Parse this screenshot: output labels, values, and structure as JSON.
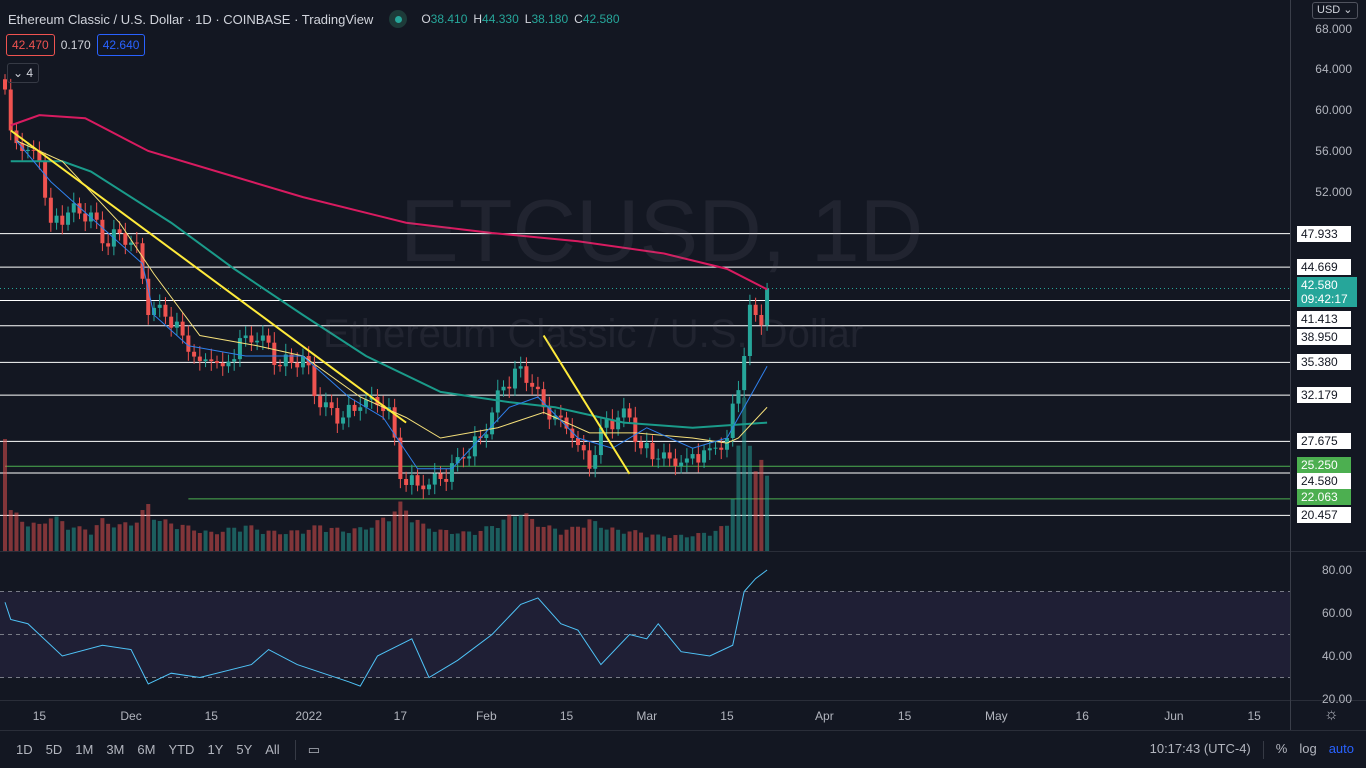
{
  "header": {
    "title": "Ethereum Classic / U.S. Dollar · 1D · COINBASE · TradingView",
    "o_label": "O",
    "o": "38.410",
    "h_label": "H",
    "h": "44.330",
    "l_label": "L",
    "l": "38.180",
    "c_label": "C",
    "c": "42.580",
    "bid": "42.470",
    "spread": "0.170",
    "ask": "42.640",
    "collapse_count": "4",
    "currency": "USD"
  },
  "watermark": {
    "symbol": "ETCUSD, 1D",
    "name": "Ethereum Classic / U.S. Dollar"
  },
  "colors": {
    "up": "#26a69a",
    "down": "#ef5350",
    "ma200": "#d81b60",
    "ma100": "#1a9b8a",
    "ma20": "#f5e07a",
    "ma10": "#2f80ed",
    "trend": "#ffeb3b",
    "rsi": "#4fc3f7"
  },
  "current_price": {
    "price": "42.580",
    "countdown": "09:42:17"
  },
  "chart_data": {
    "type": "line",
    "title": "ETCUSD 1D",
    "xlabel": "",
    "ylabel": "USD",
    "ylim": [
      16.5,
      69
    ],
    "x_ticks": [
      {
        "day": 6,
        "label": "15"
      },
      {
        "day": 22,
        "label": "Dec"
      },
      {
        "day": 36,
        "label": "15"
      },
      {
        "day": 53,
        "label": "2022"
      },
      {
        "day": 69,
        "label": "17"
      },
      {
        "day": 84,
        "label": "Feb"
      },
      {
        "day": 98,
        "label": "15"
      },
      {
        "day": 112,
        "label": "Mar"
      },
      {
        "day": 126,
        "label": "15"
      },
      {
        "day": 143,
        "label": "Apr"
      },
      {
        "day": 157,
        "label": "15"
      },
      {
        "day": 173,
        "label": "May"
      },
      {
        "day": 188,
        "label": "16"
      },
      {
        "day": 204,
        "label": "Jun"
      },
      {
        "day": 218,
        "label": "15"
      }
    ],
    "y_ticks": [
      "68.000",
      "64.000",
      "60.000",
      "56.000",
      "52.000"
    ],
    "close": {
      "day": [
        0,
        1,
        3,
        6,
        8,
        11,
        15,
        17,
        20,
        23,
        25,
        27,
        31,
        34,
        36,
        38,
        42,
        45,
        48,
        52,
        55,
        59,
        62,
        64,
        67,
        69,
        73,
        76,
        80,
        83,
        87,
        90,
        92,
        94,
        97,
        99,
        102,
        104,
        107,
        109,
        111,
        114,
        116,
        119,
        123,
        126,
        129,
        130,
        131,
        132,
        133
      ],
      "value": [
        62,
        58,
        56,
        55,
        49,
        50,
        50,
        47,
        48,
        47,
        40,
        41,
        38,
        35.5,
        35.5,
        35,
        38,
        38,
        35,
        36,
        31,
        30,
        31,
        32,
        31,
        24,
        23,
        24,
        26,
        28,
        33,
        35,
        33,
        31,
        30,
        28,
        25,
        29,
        30,
        30,
        27,
        26,
        26,
        26,
        27,
        28,
        36,
        41,
        40,
        39,
        42.58
      ],
      "volume": [
        140,
        40,
        30,
        25,
        35,
        25,
        20,
        30,
        25,
        30,
        45,
        30,
        25,
        20,
        18,
        20,
        25,
        20,
        18,
        20,
        25,
        20,
        22,
        25,
        35,
        45,
        25,
        20,
        18,
        20,
        30,
        40,
        30,
        25,
        20,
        22,
        30,
        25,
        20,
        20,
        18,
        15,
        15,
        15,
        18,
        25,
        140,
        110,
        90,
        85,
        70
      ]
    },
    "ma200": {
      "day": [
        1,
        6,
        14,
        25,
        40,
        52,
        70,
        85,
        100,
        115,
        126,
        133
      ],
      "value": [
        58.5,
        59.5,
        59.2,
        56,
        53.5,
        51.5,
        49,
        48,
        47.2,
        46,
        44.5,
        42.5
      ]
    },
    "ma100": {
      "day": [
        1,
        10,
        15,
        29,
        40,
        52,
        63,
        76,
        88,
        96,
        108,
        120,
        133
      ],
      "value": [
        55,
        55,
        54,
        49,
        44.5,
        40,
        36,
        32.5,
        31.5,
        31,
        29.5,
        29,
        29.5
      ]
    },
    "ma20": {
      "day": [
        2,
        10,
        20,
        26,
        34,
        44,
        52,
        62,
        70,
        76,
        86,
        94,
        102,
        110,
        120,
        126,
        128,
        133
      ],
      "value": [
        57,
        55,
        49,
        44,
        38,
        37,
        36,
        32,
        30,
        28,
        29,
        30.5,
        28.5,
        28.5,
        28,
        27.5,
        28,
        31
      ]
    },
    "ma10": {
      "day": [
        2,
        8,
        18,
        24,
        26,
        32,
        42,
        52,
        60,
        66,
        72,
        78,
        88,
        93,
        100,
        106,
        112,
        120,
        126,
        128,
        131,
        133
      ],
      "value": [
        57,
        53,
        48,
        45,
        40,
        37,
        36,
        36,
        32,
        30,
        25,
        25,
        31,
        32,
        28,
        27,
        29,
        27,
        28,
        30,
        33,
        35
      ]
    },
    "trendlines": [
      {
        "from": {
          "day": 1,
          "value": 58
        },
        "to": {
          "day": 70,
          "value": 29.5
        }
      },
      {
        "from": {
          "day": 94,
          "value": 38
        },
        "to": {
          "day": 109,
          "value": 24.5
        }
      }
    ],
    "levels": [
      {
        "value": 47.933,
        "label": "47.933"
      },
      {
        "value": 44.669,
        "label": "44.669"
      },
      {
        "value": 41.413,
        "label": "41.413"
      },
      {
        "value": 38.95,
        "label": "38.950"
      },
      {
        "value": 35.38,
        "label": "35.380"
      },
      {
        "value": 32.179,
        "label": "32.179"
      },
      {
        "value": 27.675,
        "label": "27.675"
      },
      {
        "value": 24.58,
        "label": "24.580"
      },
      {
        "value": 20.457,
        "label": "20.457"
      }
    ],
    "green_levels": [
      {
        "value": 25.25,
        "label": "25.250",
        "from_day": 0
      },
      {
        "value": 22.063,
        "label": "22.063",
        "from_day": 32
      }
    ],
    "rsi": {
      "ylim": [
        20,
        80
      ],
      "y_ticks": [
        "80.00",
        "60.00",
        "40.00",
        "20.00"
      ],
      "bands": [
        70,
        50,
        30
      ],
      "day": [
        0,
        1,
        4,
        10,
        17,
        22,
        25,
        29,
        34,
        43,
        46,
        51,
        60,
        62,
        65,
        71,
        74,
        79,
        85,
        90,
        93,
        97,
        100,
        104,
        109,
        112,
        114,
        118,
        123,
        127,
        129,
        131,
        133
      ],
      "value": [
        65,
        57,
        55,
        40,
        45,
        43,
        27,
        32,
        30,
        36,
        43,
        36,
        28,
        26,
        40,
        48,
        30,
        38,
        50,
        64,
        67,
        55,
        52,
        36,
        50,
        48,
        55,
        42,
        40,
        45,
        70,
        76,
        80
      ]
    }
  },
  "bottom": {
    "ranges": [
      "1D",
      "5D",
      "1M",
      "3M",
      "6M",
      "YTD",
      "1Y",
      "5Y",
      "All"
    ],
    "clock": "10:17:43 (UTC-4)",
    "percent": "%",
    "log": "log",
    "auto": "auto"
  }
}
